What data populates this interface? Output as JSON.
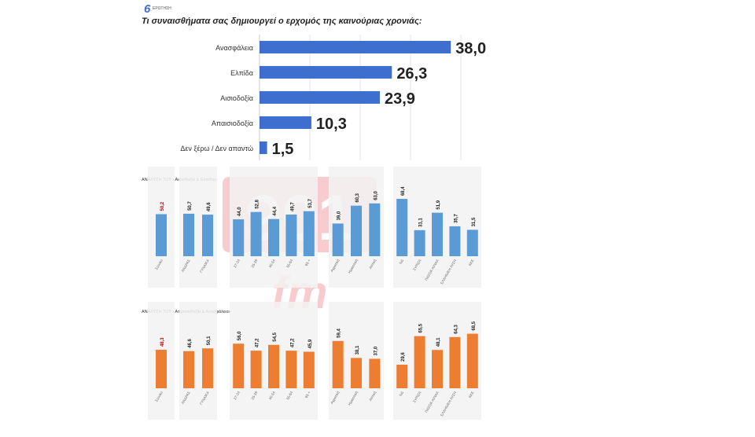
{
  "header": {
    "logo_digit": "6",
    "logo_word": "ΕΡΩΤΗΣΗ",
    "question": "Τι συναισθήματα σας δημιουργεί ο ερχομός της καινούριας χρονιάς:"
  },
  "watermark": {
    "text_top": "901",
    "text_bottom": "fm"
  },
  "colors": {
    "blue": "#3e6fcf",
    "blue_light": "#5b9bd5",
    "orange": "#ed7d31",
    "red_label": "#c00000",
    "text": "#222222"
  },
  "chart_data": [
    {
      "type": "bar",
      "orientation": "horizontal",
      "title": "Τι συναισθήματα σας δημιουργεί ο ερχομός της καινούριας χρονιάς:",
      "categories": [
        "Ανασφάλεια",
        "Ελπίδα",
        "Αισιοδοξία",
        "Απαισιοδοξία",
        "Δεν ξέρω / Δεν απαντώ"
      ],
      "values": [
        38.0,
        26.3,
        23.9,
        10.3,
        1.5
      ],
      "value_labels": [
        "38,0",
        "26,3",
        "23,9",
        "10,3",
        "1,5"
      ],
      "xlim": [
        0,
        40
      ],
      "grid": true
    },
    {
      "type": "bar",
      "title": "ΑΝΑΛΥΣΗ ΤΟΥ «Αισιοδοξία & Ελπίδα»",
      "groups": [
        [
          0
        ],
        [
          1,
          2
        ],
        [
          3,
          4,
          5,
          6,
          7
        ],
        [
          8,
          9,
          10
        ],
        [
          11,
          12,
          13,
          14,
          15
        ]
      ],
      "categories": [
        "Σύνολο",
        "ΑΝΔΡΑΣ",
        "ΓΥΝΑΙΚΑ",
        "17-24",
        "25-39",
        "40-54",
        "55-64",
        "65 +",
        "Αγροτική",
        "Ημιαστική",
        "Αστική",
        "ΝΔ",
        "ΣΥΡΙΖΑ",
        "ΠΑΣΟΚ-ΚΙΝΑΛ",
        "ΕΛΛΗΝΙΚΗ ΛΥΣΗ",
        "ΚΚΕ"
      ],
      "values": [
        50.2,
        50.7,
        49.6,
        44.0,
        52.8,
        44.4,
        49.7,
        53.7,
        39.0,
        60.3,
        63.0,
        68.4,
        31.1,
        51.9,
        35.7,
        31.5
      ],
      "value_labels": [
        "50,2",
        "50,7",
        "49,6",
        "44,0",
        "52,8",
        "44,4",
        "49,7",
        "53,7",
        "39,0",
        "60,3",
        "63,0",
        "68,4",
        "31,1",
        "51,9",
        "35,7",
        "31,5"
      ],
      "ylim": [
        0,
        75
      ]
    },
    {
      "type": "bar",
      "title": "ΑΝΑΛΥΣΗ ΤΟΥ «Απαισιοδοξία & Ανασφάλεια»",
      "groups": [
        [
          0
        ],
        [
          1,
          2
        ],
        [
          3,
          4,
          5,
          6,
          7
        ],
        [
          8,
          9,
          10
        ],
        [
          11,
          12,
          13,
          14,
          15
        ]
      ],
      "categories": [
        "Σύνολο",
        "ΑΝΔΡΑΣ",
        "ΓΥΝΑΙΚΑ",
        "17-24",
        "25-39",
        "40-54",
        "55-64",
        "65 +",
        "Αγροτική",
        "Ημιαστική",
        "Αστική",
        "ΝΔ",
        "ΣΥΡΙΖΑ",
        "ΠΑΣΟΚ-ΚΙΝΑΛ",
        "ΕΛΛΗΝΙΚΗ ΛΥΣΗ",
        "ΚΚΕ"
      ],
      "values": [
        48.3,
        46.6,
        50.1,
        56.0,
        47.2,
        54.5,
        47.2,
        45.9,
        59.4,
        38.1,
        37.0,
        29.6,
        65.5,
        48.1,
        64.3,
        68.5
      ],
      "value_labels": [
        "48,3",
        "46,6",
        "50,1",
        "56,0",
        "47,2",
        "54,5",
        "47,2",
        "45,9",
        "59,4",
        "38,1",
        "37,0",
        "29,6",
        "65,5",
        "48,1",
        "64,3",
        "68,5"
      ],
      "ylim": [
        0,
        75
      ]
    }
  ]
}
